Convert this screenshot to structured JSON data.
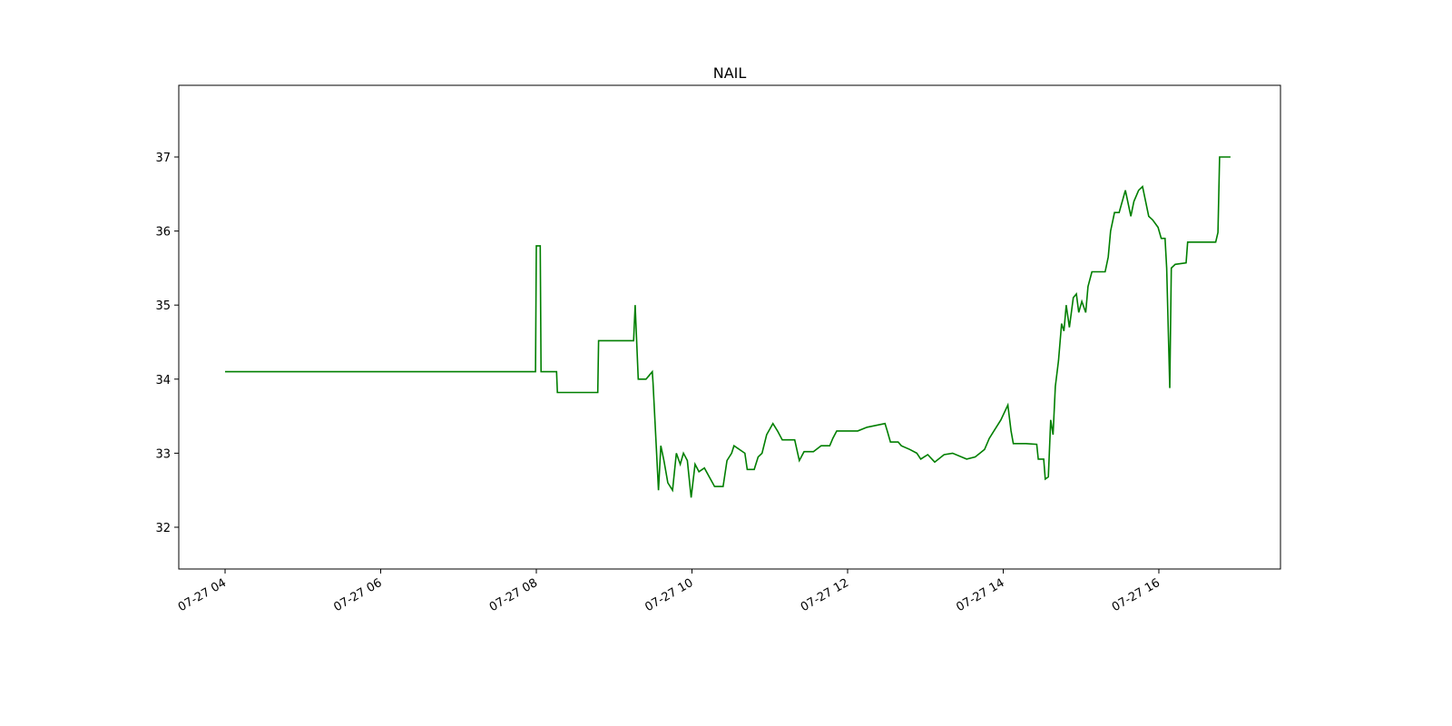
{
  "chart_data": {
    "type": "line",
    "title": "NAIL",
    "series": [
      {
        "color": "#007f00",
        "x": [
          4.0,
          7.99,
          8.0,
          8.05,
          8.06,
          8.26,
          8.27,
          8.79,
          8.8,
          9.25,
          9.27,
          9.31,
          9.41,
          9.49,
          9.5,
          9.57,
          9.6,
          9.64,
          9.69,
          9.75,
          9.8,
          9.85,
          9.89,
          9.94,
          9.99,
          10.04,
          10.09,
          10.16,
          10.29,
          10.4,
          10.45,
          10.51,
          10.54,
          10.68,
          10.71,
          10.8,
          10.85,
          10.9,
          10.96,
          11.04,
          11.1,
          11.16,
          11.32,
          11.38,
          11.44,
          11.56,
          11.66,
          11.77,
          11.81,
          11.86,
          12.13,
          12.25,
          12.48,
          12.51,
          12.55,
          12.65,
          12.69,
          12.8,
          12.89,
          12.94,
          13.03,
          13.12,
          13.24,
          13.35,
          13.53,
          13.64,
          13.7,
          13.76,
          13.82,
          13.88,
          13.97,
          14.06,
          14.1,
          14.13,
          14.29,
          14.43,
          14.45,
          14.52,
          14.54,
          14.58,
          14.61,
          14.64,
          14.67,
          14.71,
          14.75,
          14.78,
          14.81,
          14.85,
          14.9,
          14.94,
          14.97,
          15.01,
          15.06,
          15.09,
          15.14,
          15.31,
          15.35,
          15.38,
          15.43,
          15.49,
          15.57,
          15.64,
          15.68,
          15.74,
          15.79,
          15.83,
          15.87,
          15.92,
          15.99,
          16.03,
          16.08,
          16.1,
          16.14,
          16.16,
          16.21,
          16.35,
          16.37,
          16.73,
          16.76,
          16.78,
          16.92
        ],
        "values": [
          34.1,
          34.1,
          35.8,
          35.8,
          34.1,
          34.1,
          33.82,
          33.82,
          34.52,
          34.52,
          35.0,
          34.0,
          34.0,
          34.1,
          33.95,
          32.5,
          33.1,
          32.9,
          32.6,
          32.5,
          33.0,
          32.85,
          33.0,
          32.9,
          32.4,
          32.85,
          32.75,
          32.8,
          32.55,
          32.55,
          32.9,
          33.0,
          33.1,
          33.0,
          32.78,
          32.78,
          32.95,
          33.0,
          33.25,
          33.4,
          33.3,
          33.18,
          33.18,
          32.9,
          33.02,
          33.02,
          33.1,
          33.1,
          33.2,
          33.3,
          33.3,
          33.35,
          33.4,
          33.3,
          33.15,
          33.15,
          33.1,
          33.05,
          33.0,
          32.92,
          32.98,
          32.88,
          32.98,
          33.0,
          32.92,
          32.95,
          33.0,
          33.05,
          33.2,
          33.3,
          33.45,
          33.65,
          33.3,
          33.13,
          33.13,
          33.12,
          32.92,
          32.92,
          32.65,
          32.68,
          33.45,
          33.25,
          33.9,
          34.25,
          34.75,
          34.65,
          35.0,
          34.7,
          35.1,
          35.15,
          34.9,
          35.05,
          34.9,
          35.25,
          35.45,
          35.45,
          35.65,
          36.0,
          36.25,
          36.25,
          36.55,
          36.2,
          36.4,
          36.55,
          36.6,
          36.4,
          36.2,
          36.15,
          36.05,
          35.9,
          35.9,
          35.5,
          33.88,
          35.5,
          35.55,
          35.57,
          35.85,
          35.85,
          35.98,
          37.0,
          37.0
        ]
      }
    ],
    "xlim": [
      3.405,
      17.563
    ],
    "ylim": [
      31.436,
      37.968
    ],
    "xticks": [
      {
        "value": 4,
        "label": "07-27 04"
      },
      {
        "value": 6,
        "label": "07-27 06"
      },
      {
        "value": 8,
        "label": "07-27 08"
      },
      {
        "value": 10,
        "label": "07-27 10"
      },
      {
        "value": 12,
        "label": "07-27 12"
      },
      {
        "value": 14,
        "label": "07-27 14"
      },
      {
        "value": 16,
        "label": "07-27 16"
      }
    ],
    "yticks": [
      32,
      33,
      34,
      35,
      36,
      37
    ],
    "grid": false
  }
}
